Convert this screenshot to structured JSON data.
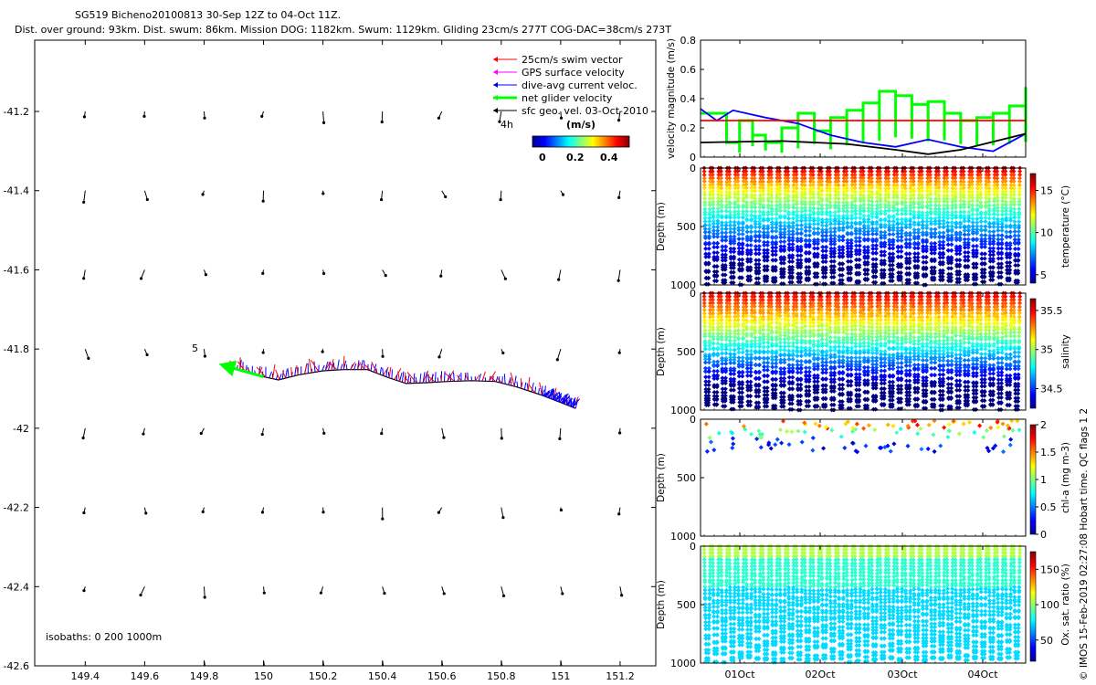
{
  "header": {
    "title_line1": "SG519 Bicheno20100813 30-Sep 12Z to 04-Oct 11Z.",
    "title_line2": "Dist. over ground: 93km. Dist. swum: 86km. Mission DOG: 1182km. Swum: 1129km. Gliding 23cm/s 277T COG-DAC=38cm/s 273T"
  },
  "credit": "© IMOS 15-Feb-2019 02:27:08 Hobart time. QC flags 1  2",
  "colors": {
    "swim": "#ff0000",
    "gps": "#ff00ff",
    "dac": "#0000ff",
    "net": "#00ff00",
    "geo": "#000000",
    "sat_ref": "#ff0000"
  },
  "chart_data": [
    {
      "type": "scatter",
      "name": "map",
      "x_ticks": [
        149.4,
        149.6,
        149.8,
        150,
        150.2,
        150.4,
        150.6,
        150.8,
        151,
        151.2
      ],
      "x_tick_labels": [
        "149.4",
        "149.6",
        "149.8",
        "150",
        "150.2",
        "150.4",
        "150.6",
        "150.8",
        "151",
        "151.2"
      ],
      "y_ticks": [
        -41.2,
        -41.4,
        -41.6,
        -41.8,
        -42,
        -42.2,
        -42.4,
        -42.6
      ],
      "y_tick_labels": [
        "-41.2",
        "-41.4",
        "-41.6",
        "-41.8",
        "-42",
        "-42.2",
        "-42.4",
        "-42.6"
      ],
      "xlim": [
        149.23,
        151.32
      ],
      "ylim": [
        -42.6,
        -41.02
      ],
      "legend": [
        {
          "label": "25cm/s swim vector",
          "color": "#ff0000"
        },
        {
          "label": "GPS surface velocity",
          "color": "#ff00ff"
        },
        {
          "label": "dive-avg current veloc.",
          "color": "#0000ff"
        },
        {
          "label": "net glider velocity",
          "color": "#00ff00"
        },
        {
          "label": "sfc geo. vel. 03-Oct-2010",
          "color": "#000000"
        }
      ],
      "legend_position": "top-right",
      "scale_label": "4h",
      "colorbar": {
        "title": "(m/s)",
        "ticks": [
          "0",
          "0.2",
          "0.4"
        ],
        "range": [
          0,
          0.5
        ]
      },
      "track_lon": [
        149.9,
        149.97,
        150.05,
        150.12,
        150.2,
        150.27,
        150.35,
        150.42,
        150.48,
        150.55,
        150.62,
        150.7,
        150.78,
        150.85,
        150.93,
        151.0,
        151.05
      ],
      "track_lat": [
        -41.85,
        -41.865,
        -41.878,
        -41.865,
        -41.855,
        -41.852,
        -41.852,
        -41.872,
        -41.887,
        -41.885,
        -41.882,
        -41.88,
        -41.882,
        -41.895,
        -41.915,
        -41.935,
        -41.95
      ],
      "net_velocity_start": [
        150.0,
        -41.87
      ],
      "net_velocity_end": [
        149.86,
        -41.84
      ],
      "annotation": "5",
      "isobath_label": "isobaths: 0   200  1000m"
    },
    {
      "type": "line",
      "name": "velocity",
      "ylabel": "velocity magnitude (m/s)",
      "ylim": [
        0,
        0.8
      ],
      "y_ticks": [
        "0",
        "0.2",
        "0.4",
        "0.6",
        "0.8"
      ],
      "series": [
        {
          "name": "net velocity",
          "color": "#00ff00",
          "x": [
            0.0,
            0.08,
            0.12,
            0.16,
            0.2,
            0.25,
            0.3,
            0.35,
            0.4,
            0.45,
            0.5,
            0.55,
            0.6,
            0.65,
            0.7,
            0.75,
            0.8,
            0.85,
            0.9,
            0.95,
            1.0
          ],
          "values": [
            0.3,
            0.1,
            0.25,
            0.15,
            0.1,
            0.2,
            0.3,
            0.18,
            0.27,
            0.32,
            0.37,
            0.45,
            0.42,
            0.36,
            0.38,
            0.3,
            0.25,
            0.27,
            0.3,
            0.35,
            0.48
          ]
        },
        {
          "name": "dive-avg current",
          "color": "#0000ff",
          "x": [
            0.0,
            0.05,
            0.1,
            0.2,
            0.3,
            0.4,
            0.5,
            0.6,
            0.7,
            0.8,
            0.9,
            1.0
          ],
          "values": [
            0.33,
            0.25,
            0.32,
            0.27,
            0.23,
            0.15,
            0.1,
            0.07,
            0.12,
            0.07,
            0.04,
            0.16
          ]
        },
        {
          "name": "geostrophic",
          "color": "#000000",
          "x": [
            0.0,
            0.25,
            0.45,
            0.6,
            0.7,
            0.8,
            1.0
          ],
          "values": [
            0.1,
            0.11,
            0.09,
            0.05,
            0.02,
            0.05,
            0.16
          ]
        },
        {
          "name": "25 cm/s reference",
          "color": "#ff0000",
          "x": [
            0.0,
            1.0
          ],
          "values": [
            0.25,
            0.25
          ]
        }
      ]
    },
    {
      "type": "scatter",
      "name": "temperature",
      "ylabel": "Depth (m)",
      "ylim": [
        1000,
        0
      ],
      "y_ticks": [
        "0",
        "500",
        "1000"
      ],
      "colorbar": {
        "label": "temperature (°C)",
        "ticks": [
          "5",
          "10",
          "15"
        ],
        "range": [
          4,
          17
        ]
      },
      "profiles": 38,
      "max_depth": 1000
    },
    {
      "type": "scatter",
      "name": "salinity",
      "ylabel": "Depth (m)",
      "ylim": [
        1000,
        0
      ],
      "y_ticks": [
        "0",
        "500",
        "1000"
      ],
      "colorbar": {
        "label": "salinity",
        "ticks": [
          "34.5",
          "35",
          "35.5"
        ],
        "range": [
          34.25,
          35.65
        ]
      },
      "profiles": 38,
      "max_depth": 1000
    },
    {
      "type": "scatter",
      "name": "chlorophyll",
      "ylabel": "Depth (m)",
      "ylim": [
        1000,
        0
      ],
      "y_ticks": [
        "0",
        "500",
        "1000"
      ],
      "colorbar": {
        "label": "chl-a (mg m-3)",
        "ticks": [
          "0",
          "0.5",
          "1",
          "1.5",
          "2"
        ],
        "range": [
          0,
          2
        ]
      },
      "depth_range": [
        0,
        280
      ]
    },
    {
      "type": "scatter",
      "name": "oxygen",
      "ylabel": "Depth (m)",
      "ylim": [
        1000,
        0
      ],
      "y_ticks": [
        "0",
        "500",
        "1000"
      ],
      "x_tick_labels": [
        "01Oct",
        "02Oct",
        "03Oct",
        "04Oct"
      ],
      "colorbar": {
        "label": "Ox. sat. ratio (%)",
        "ticks": [
          "50",
          "100",
          "150"
        ],
        "range": [
          20,
          175
        ]
      },
      "profiles": 38,
      "max_depth": 1000
    }
  ]
}
